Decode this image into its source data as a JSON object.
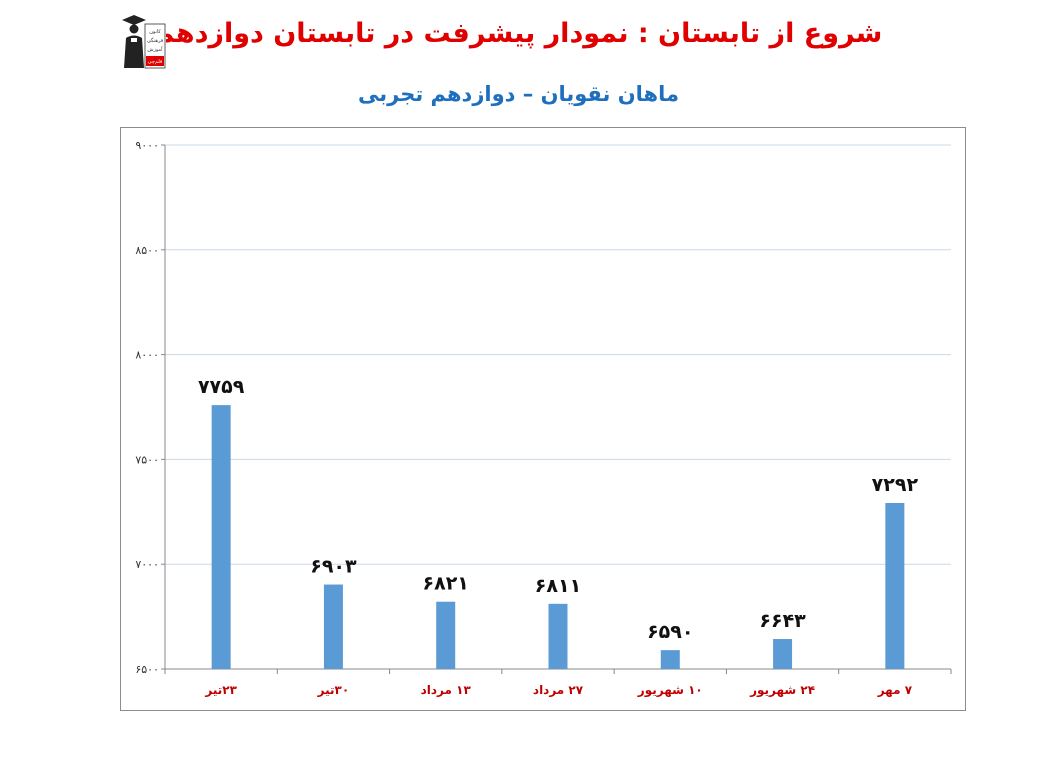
{
  "header": {
    "title": "شروع از تابستان : نمودار پیشرفت در تابستان دوازدهم",
    "subtitle": "ماهان نقویان – دوازدهم تجربی"
  },
  "logo": {
    "icon": "graduate-logo-icon",
    "lines": [
      "کانون",
      "فرهنگی",
      "آموزش",
      "قلم‌چی"
    ]
  },
  "colors": {
    "title": "#e00000",
    "subtitle": "#1f6fbf",
    "bar": "#5b9bd5",
    "category_label": "#c00000",
    "gridline": "#c9d9ea"
  },
  "chart_data": {
    "type": "bar",
    "categories": [
      "۲۳تیر",
      "۳۰تیر",
      "۱۳ مرداد",
      "۲۷ مرداد",
      "۱۰ شهریور",
      "۲۴ شهریور",
      "۷ مهر"
    ],
    "values": [
      7759,
      6903,
      6821,
      6811,
      6590,
      6643,
      7292
    ],
    "value_labels": [
      "۷۷۵۹",
      "۶۹۰۳",
      "۶۸۲۱",
      "۶۸۱۱",
      "۶۵۹۰",
      "۶۶۴۳",
      "۷۲۹۲"
    ],
    "y_ticks": [
      6500,
      7000,
      7500,
      8000,
      8500,
      9000
    ],
    "y_tick_labels": [
      "۶۵۰۰",
      "۷۰۰۰",
      "۷۵۰۰",
      "۸۰۰۰",
      "۸۵۰۰",
      "۹۰۰۰"
    ],
    "ylim": [
      6500,
      9000
    ],
    "grid": true,
    "legend": "none"
  }
}
